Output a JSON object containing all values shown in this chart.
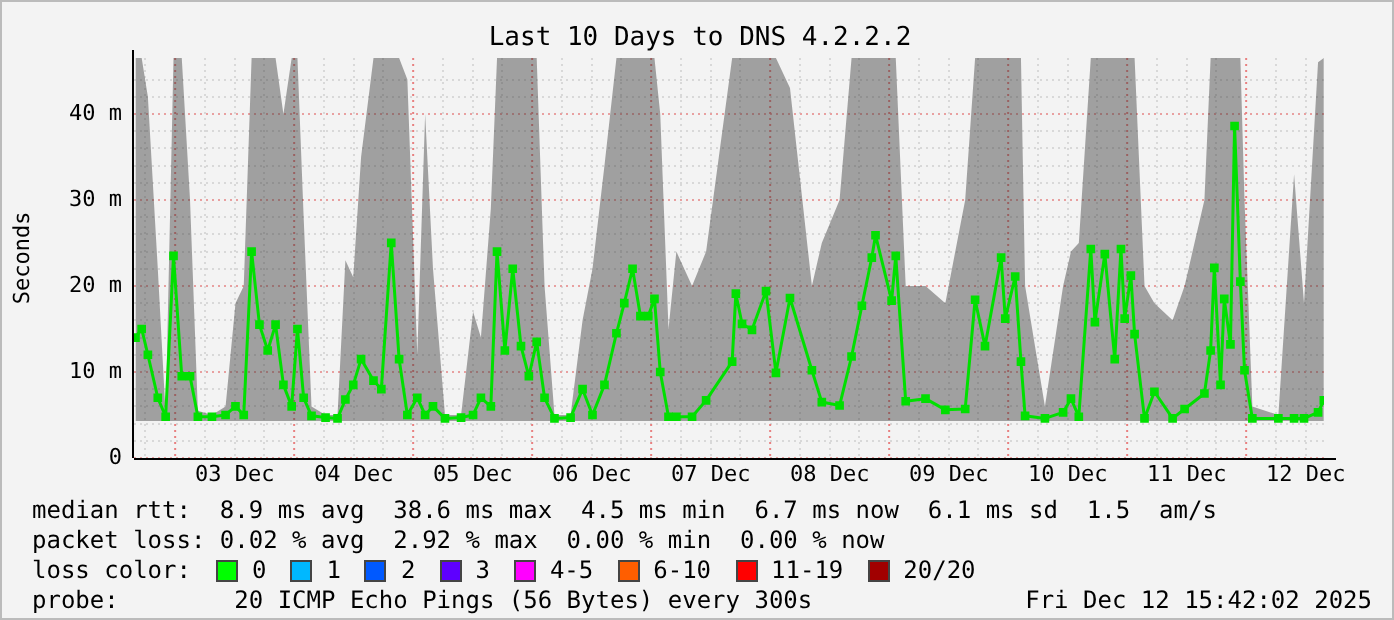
{
  "chart_data": {
    "type": "line",
    "title": "Last 10 Days to DNS 4.2.2.2",
    "ylabel": "Seconds",
    "xlim": [
      "2025-12-02T15:42",
      "2025-12-12T15:42"
    ],
    "ylim": [
      0,
      46.5
    ],
    "xticks": [
      {
        "value": "2025-12-02T18:00",
        "label": null
      },
      {
        "value": "2025-12-03T06:00",
        "label": null
      },
      {
        "value": "2025-12-03T12:00",
        "label": "03 Dec"
      },
      {
        "value": "2025-12-03T18:00",
        "label": null
      },
      {
        "value": "2025-12-04T06:00",
        "label": null
      },
      {
        "value": "2025-12-04T12:00",
        "label": "04 Dec"
      },
      {
        "value": "2025-12-04T18:00",
        "label": null
      },
      {
        "value": "2025-12-05T06:00",
        "label": null
      },
      {
        "value": "2025-12-05T12:00",
        "label": "05 Dec"
      },
      {
        "value": "2025-12-05T18:00",
        "label": null
      },
      {
        "value": "2025-12-06T06:00",
        "label": null
      },
      {
        "value": "2025-12-06T12:00",
        "label": "06 Dec"
      },
      {
        "value": "2025-12-06T18:00",
        "label": null
      },
      {
        "value": "2025-12-07T06:00",
        "label": null
      },
      {
        "value": "2025-12-07T12:00",
        "label": "07 Dec"
      },
      {
        "value": "2025-12-07T18:00",
        "label": null
      },
      {
        "value": "2025-12-08T06:00",
        "label": null
      },
      {
        "value": "2025-12-08T12:00",
        "label": "08 Dec"
      },
      {
        "value": "2025-12-08T18:00",
        "label": null
      },
      {
        "value": "2025-12-09T06:00",
        "label": null
      },
      {
        "value": "2025-12-09T12:00",
        "label": "09 Dec"
      },
      {
        "value": "2025-12-09T18:00",
        "label": null
      },
      {
        "value": "2025-12-10T06:00",
        "label": null
      },
      {
        "value": "2025-12-10T12:00",
        "label": "10 Dec"
      },
      {
        "value": "2025-12-10T18:00",
        "label": null
      },
      {
        "value": "2025-12-11T06:00",
        "label": null
      },
      {
        "value": "2025-12-11T12:00",
        "label": "11 Dec"
      },
      {
        "value": "2025-12-11T18:00",
        "label": null
      },
      {
        "value": "2025-12-12T06:00",
        "label": null
      },
      {
        "value": "2025-12-12T12:00",
        "label": "12 Dec"
      }
    ],
    "yticks": [
      0,
      {
        "value": 2,
        "label": null
      },
      {
        "value": 4,
        "label": null
      },
      {
        "value": 6,
        "label": null
      },
      {
        "value": 8,
        "label": null
      },
      {
        "value": 10,
        "label": "10 m"
      },
      {
        "value": 12,
        "label": null
      },
      {
        "value": 14,
        "label": null
      },
      {
        "value": 16,
        "label": null
      },
      {
        "value": 18,
        "label": null
      },
      {
        "value": 20,
        "label": "20 m"
      },
      {
        "value": 22,
        "label": null
      },
      {
        "value": 24,
        "label": null
      },
      {
        "value": 26,
        "label": null
      },
      {
        "value": 28,
        "label": null
      },
      {
        "value": 30,
        "label": "30 m"
      },
      {
        "value": 32,
        "label": null
      },
      {
        "value": 34,
        "label": null
      },
      {
        "value": 36,
        "label": null
      },
      {
        "value": 38,
        "label": null
      },
      {
        "value": 40,
        "label": "40 m"
      },
      {
        "value": 42,
        "label": null
      },
      {
        "value": 44,
        "label": null
      }
    ],
    "grid": true,
    "legend": false,
    "marker": "square",
    "line_style": "solid",
    "ref_lines": [
      {
        "axis": "x",
        "value": "2025-12-03T00:00",
        "color": "#e88080",
        "line_style": "dotted"
      },
      {
        "axis": "x",
        "value": "2025-12-04T00:00",
        "color": "#e88080",
        "line_style": "dotted"
      },
      {
        "axis": "x",
        "value": "2025-12-05T00:00",
        "color": "#e88080",
        "line_style": "dotted"
      },
      {
        "axis": "x",
        "value": "2025-12-06T00:00",
        "color": "#e88080",
        "line_style": "dotted"
      },
      {
        "axis": "x",
        "value": "2025-12-07T00:00",
        "color": "#e88080",
        "line_style": "dotted"
      },
      {
        "axis": "x",
        "value": "2025-12-08T00:00",
        "color": "#e88080",
        "line_style": "dotted"
      },
      {
        "axis": "x",
        "value": "2025-12-09T00:00",
        "color": "#e88080",
        "line_style": "dotted"
      },
      {
        "axis": "x",
        "value": "2025-12-10T00:00",
        "color": "#e88080",
        "line_style": "dotted"
      },
      {
        "axis": "x",
        "value": "2025-12-11T00:00",
        "color": "#e88080",
        "line_style": "dotted"
      },
      {
        "axis": "x",
        "value": "2025-12-12T00:00",
        "color": "#e88080",
        "line_style": "dotted"
      }
    ],
    "series": [
      {
        "color": "#00e000",
        "x": [
          "2025-12-02T16:00",
          "2025-12-02T17:15",
          "2025-12-02T18:30",
          "2025-12-02T20:30",
          "2025-12-02T22:05",
          "2025-12-02T23:40",
          "2025-12-03T01:20",
          "2025-12-03T03:00",
          "2025-12-03T04:35",
          "2025-12-03T07:25",
          "2025-12-03T10:10",
          "2025-12-03T12:10",
          "2025-12-03T13:50",
          "2025-12-03T15:25",
          "2025-12-03T17:00",
          "2025-12-03T18:40",
          "2025-12-03T20:15",
          "2025-12-03T21:50",
          "2025-12-03T23:30",
          "2025-12-04T00:40",
          "2025-12-04T01:55",
          "2025-12-04T03:30",
          "2025-12-04T06:20",
          "2025-12-04T08:45",
          "2025-12-04T10:20",
          "2025-12-04T11:55",
          "2025-12-04T13:30",
          "2025-12-04T16:00",
          "2025-12-04T17:35",
          "2025-12-04T19:35",
          "2025-12-04T21:10",
          "2025-12-04T22:50",
          "2025-12-05T00:50",
          "2025-12-05T02:25",
          "2025-12-05T04:00",
          "2025-12-05T06:25",
          "2025-12-05T09:40",
          "2025-12-05T12:05",
          "2025-12-05T13:40",
          "2025-12-05T15:40",
          "2025-12-05T16:55",
          "2025-12-05T18:30",
          "2025-12-05T20:05",
          "2025-12-05T21:45",
          "2025-12-05T23:20",
          "2025-12-06T00:55",
          "2025-12-06T02:30",
          "2025-12-06T04:30",
          "2025-12-06T07:45",
          "2025-12-06T10:10",
          "2025-12-06T12:10",
          "2025-12-06T14:35",
          "2025-12-06T17:00",
          "2025-12-06T18:35",
          "2025-12-06T20:15",
          "2025-12-06T21:50",
          "2025-12-06T23:25",
          "2025-12-07T00:40",
          "2025-12-07T01:50",
          "2025-12-07T03:30",
          "2025-12-07T05:05",
          "2025-12-07T08:15",
          "2025-12-07T11:05",
          "2025-12-07T16:20",
          "2025-12-07T17:05",
          "2025-12-07T18:20",
          "2025-12-07T20:20",
          "2025-12-07T23:10",
          "2025-12-08T01:10",
          "2025-12-08T04:00",
          "2025-12-08T08:25",
          "2025-12-08T10:25",
          "2025-12-08T14:00",
          "2025-12-08T16:25",
          "2025-12-08T18:30",
          "2025-12-08T20:30",
          "2025-12-08T21:15",
          "2025-12-09T00:30",
          "2025-12-09T01:20",
          "2025-12-09T03:20",
          "2025-12-09T07:20",
          "2025-12-09T11:20",
          "2025-12-09T15:20",
          "2025-12-09T17:20",
          "2025-12-09T19:20",
          "2025-12-09T22:35",
          "2025-12-09T23:25",
          "2025-12-10T01:25",
          "2025-12-10T02:35",
          "2025-12-10T03:25",
          "2025-12-10T07:25",
          "2025-12-10T11:05",
          "2025-12-10T12:40",
          "2025-12-10T14:15",
          "2025-12-10T16:40",
          "2025-12-10T17:30",
          "2025-12-10T19:30",
          "2025-12-10T21:30",
          "2025-12-10T22:45",
          "2025-12-10T23:30",
          "2025-12-11T00:45",
          "2025-12-11T01:30",
          "2025-12-11T03:30",
          "2025-12-11T05:30",
          "2025-12-11T09:10",
          "2025-12-11T11:35",
          "2025-12-11T15:35",
          "2025-12-11T16:50",
          "2025-12-11T17:35",
          "2025-12-11T18:50",
          "2025-12-11T19:35",
          "2025-12-11T20:50",
          "2025-12-11T21:40",
          "2025-12-11T22:50",
          "2025-12-11T23:40",
          "2025-12-12T01:15",
          "2025-12-12T06:30",
          "2025-12-12T09:40",
          "2025-12-12T11:40",
          "2025-12-12T14:30",
          "2025-12-12T15:40"
        ],
        "values": [
          14,
          15,
          12,
          7,
          4.8,
          23.5,
          9.5,
          9.5,
          4.8,
          4.8,
          5,
          6,
          5,
          24,
          15.5,
          12.5,
          15.5,
          8.5,
          6,
          15,
          7,
          4.9,
          4.7,
          4.6,
          6.8,
          8.5,
          11.5,
          9,
          8,
          25,
          11.5,
          5,
          7,
          5,
          6,
          4.6,
          4.7,
          5,
          7,
          6,
          24,
          12.5,
          22,
          13,
          9.5,
          13.5,
          7,
          4.6,
          4.7,
          8,
          5,
          8.5,
          14.5,
          18,
          22,
          16.5,
          16.5,
          18.5,
          10,
          4.8,
          4.8,
          4.8,
          6.7,
          11.2,
          19.1,
          15.6,
          14.9,
          19.4,
          9.9,
          18.6,
          10.2,
          6.5,
          6.1,
          11.8,
          17.7,
          23.3,
          25.9,
          18.3,
          23.5,
          6.6,
          6.9,
          5.6,
          5.7,
          18.4,
          13,
          23.3,
          16.2,
          21.1,
          11.2,
          4.9,
          4.6,
          5.3,
          6.9,
          4.8,
          24.3,
          15.8,
          23.7,
          11.5,
          24.3,
          16.2,
          21.2,
          14.4,
          4.6,
          7.7,
          4.6,
          5.7,
          7.5,
          12.5,
          22.1,
          8.5,
          18.5,
          13.2,
          38.6,
          20.5,
          10.2,
          4.6,
          4.6,
          4.6,
          4.6,
          5.3,
          6.7
        ],
        "upper": [
          46.5,
          46.5,
          42,
          22,
          5,
          46.5,
          46.5,
          30,
          5.5,
          5,
          6,
          18,
          20,
          46.5,
          46.5,
          46.5,
          46.5,
          40,
          46.5,
          46.5,
          28,
          6,
          5,
          5,
          23,
          21,
          35,
          46.5,
          46.5,
          46.5,
          46.5,
          44,
          12,
          40,
          22,
          5,
          5,
          17,
          14,
          29,
          46.5,
          46.5,
          46.5,
          46.5,
          46.5,
          46.5,
          20,
          5,
          5,
          16,
          22,
          34,
          46.5,
          46.5,
          46.5,
          46.5,
          46.5,
          46.5,
          40,
          15,
          24,
          20,
          24,
          46.5,
          46.5,
          46.5,
          46.5,
          46.5,
          46.5,
          43,
          20,
          25,
          30,
          46.5,
          46.5,
          46.5,
          46.5,
          46.5,
          46.5,
          20,
          20,
          18,
          30,
          46.5,
          46.5,
          46.5,
          46.5,
          46.5,
          46.5,
          20,
          6,
          20,
          24,
          25,
          46.5,
          46.5,
          46.5,
          46.5,
          46.5,
          46.5,
          46.5,
          46.5,
          20,
          18,
          16,
          20,
          30,
          46.5,
          46.5,
          46.5,
          46.5,
          46.5,
          46.5,
          46.5,
          30,
          6,
          5,
          33,
          18,
          46,
          46.5
        ],
        "lower": [
          4.3,
          4.3,
          4.3,
          4.3,
          4.3,
          4.3,
          4.3,
          4.3,
          4.3,
          4.3,
          4.3,
          4.3,
          4.3,
          4.3,
          4.3,
          4.3,
          4.3,
          4.3,
          4.3,
          4.3,
          4.3,
          4.3,
          4.3,
          4.3,
          4.3,
          4.3,
          4.3,
          4.3,
          4.3,
          4.3,
          4.3,
          4.3,
          4.3,
          4.3,
          4.3,
          4.3,
          4.3,
          4.3,
          4.3,
          4.3,
          4.3,
          4.3,
          4.3,
          4.3,
          4.3,
          4.3,
          4.3,
          4.3,
          4.3,
          4.3,
          4.3,
          4.3,
          4.3,
          4.3,
          4.3,
          4.3,
          4.3,
          4.3,
          4.3,
          4.3,
          4.3,
          4.3,
          4.3,
          4.3,
          4.3,
          4.3,
          4.3,
          4.3,
          4.3,
          4.3,
          4.3,
          4.3,
          4.3,
          4.3,
          4.3,
          4.3,
          4.3,
          4.3,
          4.3,
          4.3,
          4.3,
          4.3,
          4.3,
          4.3,
          4.3,
          4.3,
          4.3,
          4.3,
          4.3,
          4.3,
          4.3,
          4.3,
          4.3,
          4.3,
          4.3,
          4.3,
          4.3,
          4.3,
          4.3,
          4.3,
          4.3,
          4.3,
          4.3,
          4.3,
          4.3,
          4.3,
          4.3,
          4.3,
          4.3,
          4.3,
          4.3,
          4.3,
          4.3,
          4.3,
          4.3,
          4.3,
          4.3,
          4.3,
          4.3,
          4.3,
          4.3
        ]
      }
    ],
    "annotations": [
      "median rtt:  8.9 ms avg  38.6 ms max  4.5 ms min  6.7 ms now  6.1 ms sd  1.5  am/s",
      "packet loss: 0.02 % avg  2.92 % max  0.00 % min  0.00 % now",
      "loss color:",
      "0",
      "1",
      "2",
      "3",
      "4-5",
      "6-10",
      "11-19",
      "20/20",
      "probe:        20 ICMP Echo Pings (56 Bytes) every 300s",
      "Fri Dec 12 15:42:02 2025"
    ]
  }
}
